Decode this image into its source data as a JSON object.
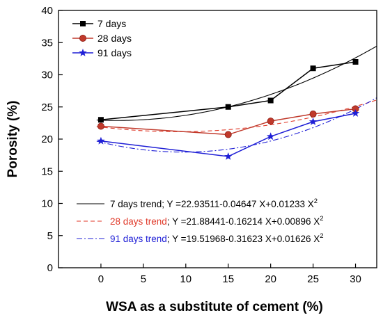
{
  "chart_data": {
    "type": "line",
    "title": "",
    "xlabel": "WSA as a substitute of cement  (%)",
    "ylabel": "Porosity (%)",
    "xlim": [
      -5,
      32.5
    ],
    "ylim": [
      0,
      40
    ],
    "x_ticks": [
      0,
      5,
      10,
      15,
      20,
      25,
      30
    ],
    "y_ticks": [
      0,
      5,
      10,
      15,
      20,
      25,
      30,
      35,
      40
    ],
    "grid": false,
    "legend_placement": "top-left",
    "series": [
      {
        "name": "7 days",
        "color": "#000000",
        "marker": "square",
        "x": [
          0,
          15,
          20,
          25,
          30
        ],
        "y": [
          23,
          25,
          26,
          31,
          32
        ]
      },
      {
        "name": "28 days",
        "color": "#c0392b",
        "marker": "circle",
        "x": [
          0,
          15,
          20,
          25,
          30
        ],
        "y": [
          22,
          20.7,
          22.8,
          23.9,
          24.7
        ]
      },
      {
        "name": "91 days",
        "color": "#1f1fd6",
        "marker": "star",
        "x": [
          0,
          15,
          20,
          25,
          30
        ],
        "y": [
          19.7,
          17.3,
          20.4,
          22.7,
          24
        ]
      }
    ],
    "trends": [
      {
        "label_name": "7 days trend",
        "label_eq": "Y =22.93511-0.04647 X+0.01233 X",
        "superscript": "2",
        "color": "#000000",
        "style": "solid",
        "coef": [
          22.93511,
          -0.04647,
          0.01233
        ]
      },
      {
        "label_name": "28 days trend",
        "label_eq": "Y =21.88441-0.16214 X+0.00896 X",
        "superscript": "2",
        "color": "#e03a2a",
        "style": "dashed",
        "coef": [
          21.88441,
          -0.16214,
          0.00896
        ]
      },
      {
        "label_name": "91 days trend",
        "label_eq": "Y =19.51968-0.31623 X+0.01626 X",
        "superscript": "2",
        "color": "#1f1fd6",
        "style": "dashdot",
        "coef": [
          19.51968,
          -0.31623,
          0.01626
        ]
      }
    ]
  }
}
